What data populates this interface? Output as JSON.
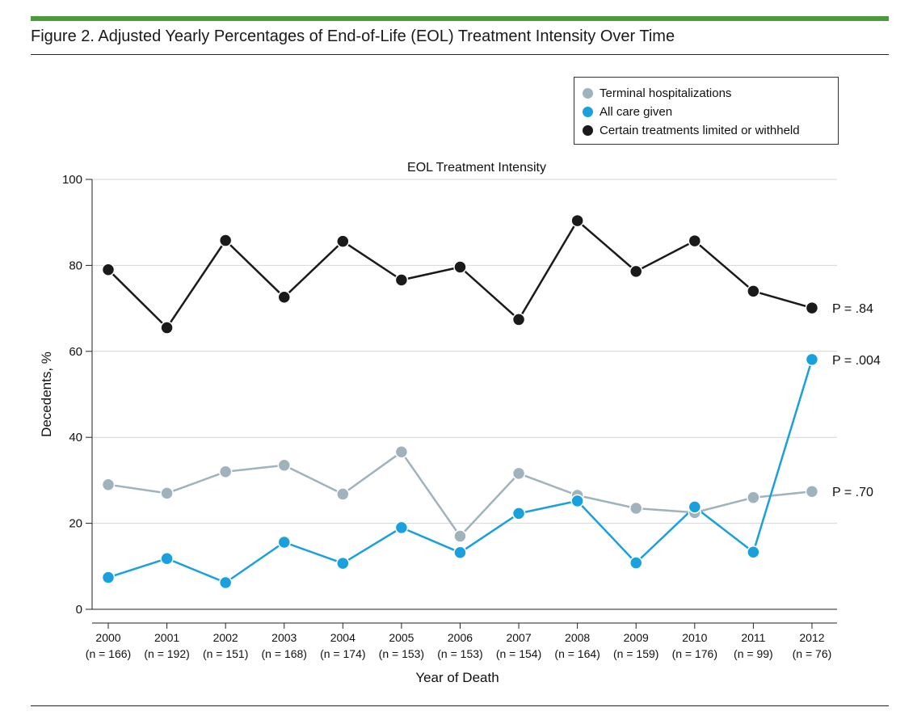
{
  "figure": {
    "title": "Figure 2. Adjusted Yearly Percentages of End-of-Life (EOL) Treatment Intensity Over Time"
  },
  "chart_data": {
    "type": "line",
    "title": "EOL Treatment Intensity",
    "xlabel": "Year of Death",
    "ylabel": "Decedents, %",
    "ylim": [
      0,
      100
    ],
    "yticks": [
      0,
      20,
      40,
      60,
      80,
      100
    ],
    "grid": true,
    "legend_position": "top-right",
    "categories": [
      "2000",
      "2001",
      "2002",
      "2003",
      "2004",
      "2005",
      "2006",
      "2007",
      "2008",
      "2009",
      "2010",
      "2011",
      "2012"
    ],
    "category_sublabels": [
      "(n = 166)",
      "(n = 192)",
      "(n = 151)",
      "(n = 168)",
      "(n = 174)",
      "(n = 153)",
      "(n = 153)",
      "(n = 154)",
      "(n = 164)",
      "(n = 159)",
      "(n = 176)",
      "(n = 99)",
      "(n = 76)"
    ],
    "series": [
      {
        "key": "terminal",
        "name": "Terminal hospitalizations",
        "color": "#9fb3bd",
        "values": [
          29,
          27,
          32,
          33.5,
          26.8,
          36.6,
          17,
          31.6,
          26.5,
          23.5,
          22.5,
          26,
          27.4
        ],
        "p_value": "P = .70"
      },
      {
        "key": "allcare",
        "name": "All care given",
        "color": "#1aa0dc",
        "values": [
          7.4,
          11.8,
          6.2,
          15.6,
          10.7,
          19,
          13.2,
          22.3,
          25.2,
          10.8,
          23.8,
          13.3,
          58.1
        ],
        "p_value": "P = .004"
      },
      {
        "key": "limited",
        "name": "Certain treatments limited or withheld",
        "color": "#1a1a1a",
        "values": [
          79,
          65.5,
          85.8,
          72.6,
          85.6,
          76.6,
          79.6,
          67.4,
          90.4,
          78.6,
          85.7,
          74,
          70.1
        ],
        "p_value": "P = .84"
      }
    ]
  }
}
